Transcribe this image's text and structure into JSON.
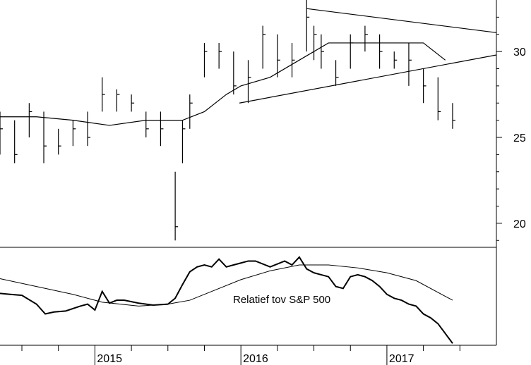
{
  "chart_data": [
    {
      "type": "bar",
      "subtype": "ohlc-weekly",
      "title": "",
      "xlabel": "",
      "ylabel": "",
      "ylim": [
        18.6,
        33
      ],
      "y_axis_position": "right",
      "y_ticks": [
        20,
        25,
        30
      ],
      "grid": false,
      "x_tick_labels": [
        {
          "label": "2015",
          "x": 2015.0
        },
        {
          "label": "2016",
          "x": 2016.0
        },
        {
          "label": "2017",
          "x": 2017.0
        }
      ],
      "xlim": [
        2014.35,
        2017.75
      ],
      "series": [
        {
          "type": "ohlc",
          "x": [
            2014.35,
            2014.45,
            2014.55,
            2014.65,
            2014.75,
            2014.85,
            2014.95,
            2015.05,
            2015.15,
            2015.25,
            2015.35,
            2015.45,
            2015.55,
            2015.6,
            2015.65,
            2015.75,
            2015.85,
            2015.95,
            2016.05,
            2016.15,
            2016.25,
            2016.35,
            2016.45,
            2016.5,
            2016.55,
            2016.65,
            2016.75,
            2016.85,
            2016.95,
            2017.05,
            2017.15,
            2017.25,
            2017.35,
            2017.45
          ],
          "high": [
            26.5,
            26.0,
            27.0,
            26.5,
            25.5,
            26.0,
            26.5,
            28.5,
            27.8,
            27.5,
            26.5,
            26.5,
            23.0,
            26.0,
            27.5,
            30.5,
            30.5,
            30.0,
            29.5,
            31.5,
            31.0,
            30.5,
            33.0,
            31.5,
            31.0,
            29.5,
            31.0,
            31.5,
            31.0,
            30.0,
            30.5,
            29.0,
            28.5,
            27.0
          ],
          "low": [
            24.0,
            23.5,
            25.0,
            23.5,
            24.0,
            24.5,
            24.5,
            26.5,
            26.5,
            26.5,
            25.0,
            24.5,
            19.0,
            23.5,
            25.5,
            28.5,
            29.0,
            27.5,
            27.0,
            29.0,
            28.5,
            28.5,
            30.0,
            29.5,
            29.0,
            28.0,
            29.0,
            30.0,
            29.0,
            29.0,
            28.0,
            27.0,
            26.0,
            25.5
          ],
          "close": [
            25.5,
            24.0,
            26.5,
            24.5,
            24.5,
            25.5,
            25.0,
            27.5,
            27.5,
            27.0,
            25.5,
            25.5,
            19.8,
            25.5,
            27.0,
            30.0,
            30.0,
            28.0,
            28.5,
            31.0,
            29.5,
            29.5,
            32.0,
            31.0,
            30.0,
            28.5,
            30.5,
            31.0,
            30.0,
            29.5,
            29.5,
            28.0,
            26.5,
            26.0
          ]
        },
        {
          "type": "line",
          "x": [
            2014.35,
            2014.6,
            2014.85,
            2015.1,
            2015.35,
            2015.5,
            2015.6,
            2015.75,
            2015.9,
            2016.0,
            2016.2,
            2016.4,
            2016.6,
            2016.8,
            2016.95,
            2017.1,
            2017.25,
            2017.4
          ],
          "y": [
            26.2,
            26.2,
            26.0,
            25.7,
            26.0,
            26.0,
            26.0,
            26.5,
            27.5,
            28.0,
            28.5,
            29.5,
            30.5,
            30.5,
            30.5,
            30.5,
            30.5,
            29.5
          ]
        },
        {
          "type": "trendline",
          "x": [
            2016.45,
            2017.75
          ],
          "y": [
            32.5,
            31.1
          ]
        },
        {
          "type": "trendline",
          "x": [
            2015.99,
            2017.75
          ],
          "y": [
            27.0,
            29.8
          ]
        }
      ]
    },
    {
      "type": "line",
      "title": "",
      "annotation": "Relatief tov S&P 500",
      "xlim": [
        2014.35,
        2017.75
      ],
      "ylim": [
        0,
        1
      ],
      "y_axis_visible": false,
      "grid": false,
      "series": [
        {
          "x": [
            2014.35,
            2014.42,
            2014.5,
            2014.6,
            2014.66,
            2014.72,
            2014.8,
            2014.9,
            2014.95,
            2015.0,
            2015.05,
            2015.1,
            2015.15,
            2015.2,
            2015.3,
            2015.4,
            2015.5,
            2015.55,
            2015.6,
            2015.65,
            2015.7,
            2015.75,
            2015.8,
            2015.85,
            2015.9,
            2015.95,
            2016.0,
            2016.05,
            2016.1,
            2016.2,
            2016.3,
            2016.35,
            2016.4,
            2016.45,
            2016.5,
            2016.55,
            2016.6,
            2016.65,
            2016.7,
            2016.75,
            2016.8,
            2016.85,
            2016.9,
            2016.95,
            2017.0,
            2017.05,
            2017.1,
            2017.15,
            2017.2,
            2017.25,
            2017.3,
            2017.35,
            2017.4,
            2017.45
          ],
          "y": [
            0.53,
            0.52,
            0.51,
            0.42,
            0.32,
            0.34,
            0.35,
            0.4,
            0.42,
            0.36,
            0.55,
            0.43,
            0.46,
            0.46,
            0.43,
            0.41,
            0.42,
            0.48,
            0.62,
            0.75,
            0.8,
            0.82,
            0.8,
            0.88,
            0.8,
            0.82,
            0.84,
            0.86,
            0.86,
            0.8,
            0.86,
            0.82,
            0.9,
            0.78,
            0.74,
            0.72,
            0.7,
            0.6,
            0.58,
            0.7,
            0.72,
            0.7,
            0.66,
            0.6,
            0.52,
            0.48,
            0.46,
            0.42,
            0.4,
            0.32,
            0.28,
            0.22,
            0.12,
            0.02
          ]
        },
        {
          "x": [
            2014.35,
            2014.6,
            2014.85,
            2015.05,
            2015.3,
            2015.5,
            2015.65,
            2015.8,
            2016.0,
            2016.2,
            2016.4,
            2016.6,
            2016.8,
            2017.0,
            2017.2,
            2017.45
          ],
          "y": [
            0.68,
            0.6,
            0.52,
            0.44,
            0.4,
            0.42,
            0.46,
            0.55,
            0.67,
            0.76,
            0.82,
            0.82,
            0.79,
            0.74,
            0.66,
            0.46
          ]
        }
      ]
    }
  ],
  "icons": {
    "axis-tick-mark": "short vertical tick"
  }
}
